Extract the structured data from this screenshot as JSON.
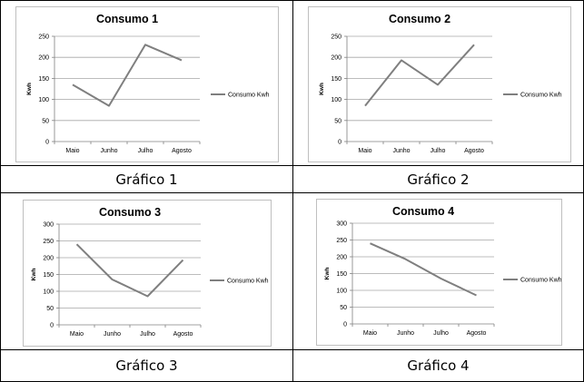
{
  "panels": [
    {
      "caption": "Gráfico 1",
      "chart_data": {
        "type": "line",
        "title": "Consumo 1",
        "ylabel": "Kwh",
        "xlabel": "",
        "categories": [
          "Maio",
          "Junho",
          "Julho",
          "Agosto"
        ],
        "series": [
          {
            "name": "Consumo Kwh",
            "values": [
              135,
              85,
              230,
              193
            ]
          }
        ],
        "ylim": [
          0,
          250
        ],
        "yticks": [
          0,
          50,
          100,
          150,
          200,
          250
        ],
        "grid": true,
        "legend": "right",
        "color": "#7f7f7f"
      }
    },
    {
      "caption": "Gráfico 2",
      "chart_data": {
        "type": "line",
        "title": "Consumo 2",
        "ylabel": "Kwh",
        "xlabel": "",
        "categories": [
          "Maio",
          "Junho",
          "Julho",
          "Agosto"
        ],
        "series": [
          {
            "name": "Consumo Kwh",
            "values": [
              85,
              193,
              135,
              230
            ]
          }
        ],
        "ylim": [
          0,
          250
        ],
        "yticks": [
          0,
          50,
          100,
          150,
          200,
          250
        ],
        "grid": true,
        "legend": "right",
        "color": "#7f7f7f"
      }
    },
    {
      "caption": "Gráfico 3",
      "chart_data": {
        "type": "line",
        "title": "Consumo 3",
        "ylabel": "Kwh",
        "xlabel": "",
        "categories": [
          "Maio",
          "Junho",
          "Julho",
          "Agosto"
        ],
        "series": [
          {
            "name": "Consumo Kwh",
            "values": [
              240,
              135,
              85,
              193
            ]
          }
        ],
        "ylim": [
          0,
          300
        ],
        "yticks": [
          0,
          50,
          100,
          150,
          200,
          250,
          300
        ],
        "grid": true,
        "legend": "right",
        "color": "#7f7f7f"
      }
    },
    {
      "caption": "Gráfico 4",
      "chart_data": {
        "type": "line",
        "title": "Consumo 4",
        "ylabel": "Kwh",
        "xlabel": "",
        "categories": [
          "Maio",
          "Junho",
          "Julho",
          "Agosto"
        ],
        "series": [
          {
            "name": "Consumo Kwh",
            "values": [
              240,
              193,
              135,
              85
            ]
          }
        ],
        "ylim": [
          0,
          300
        ],
        "yticks": [
          0,
          50,
          100,
          150,
          200,
          250,
          300
        ],
        "grid": true,
        "legend": "right",
        "color": "#7f7f7f"
      }
    }
  ]
}
